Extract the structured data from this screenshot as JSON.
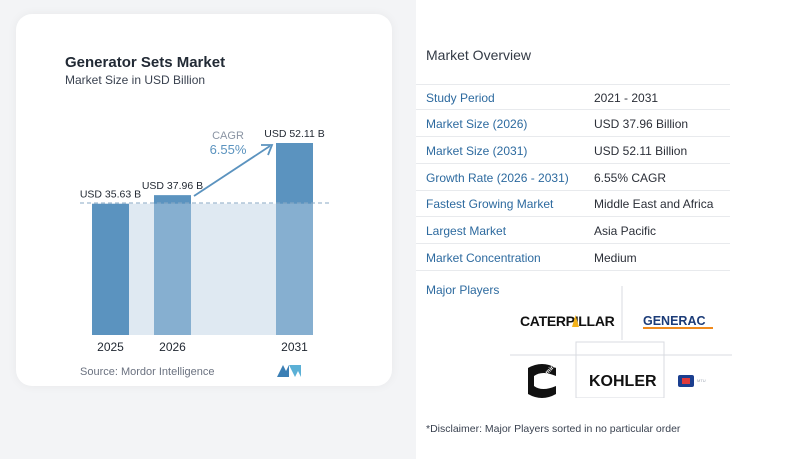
{
  "chart": {
    "title": "Generator Sets Market",
    "subtitle": "Market Size in USD Billion",
    "source": "Source:  Mordor Intelligence",
    "cagr_label": "CAGR",
    "cagr_value": "6.55%"
  },
  "chart_data": {
    "type": "bar",
    "categories": [
      "2025",
      "2026",
      "2031"
    ],
    "values": [
      35.63,
      37.96,
      52.11
    ],
    "data_labels": [
      "USD 35.63 B",
      "USD 37.96 B",
      "USD 52.11 B"
    ],
    "annotation": "CAGR 6.55%",
    "colors": {
      "bar": "#5b93bf",
      "bar_light": "#a9c7df",
      "band": "#dfe9f2",
      "arrow": "#5b93bf"
    }
  },
  "overview": {
    "title": "Market Overview",
    "rows": [
      {
        "label": "Study Period",
        "value": "2021 - 2031"
      },
      {
        "label": "Market Size (2026)",
        "value": "USD 37.96 Billion"
      },
      {
        "label": "Market Size (2031)",
        "value": "USD 52.11 Billion"
      },
      {
        "label": "Growth Rate (2026 - 2031)",
        "value": "6.55% CAGR"
      },
      {
        "label": "Fastest Growing Market",
        "value": "Middle East and Africa"
      },
      {
        "label": "Largest Market",
        "value": "Asia Pacific"
      },
      {
        "label": "Market Concentration",
        "value": "Medium"
      }
    ]
  },
  "players": {
    "title": "Major Players",
    "logos": [
      "CATERPILLAR",
      "GENERAC",
      "Cummins",
      "KOHLER",
      "MTU"
    ]
  },
  "disclaimer": "*Disclaimer: Major Players sorted in no particular order"
}
